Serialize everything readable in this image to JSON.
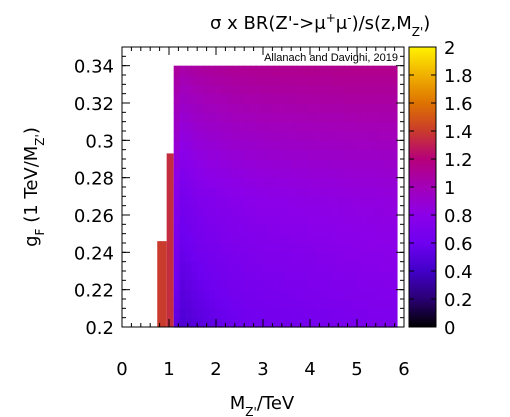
{
  "chart_data": {
    "type": "heatmap",
    "title": "σ x BR(Z'->μ⁺μ⁻)/s(z,M_Z')",
    "title_parts": {
      "pre": "σ x BR(Z'->μ",
      "sup1": "+",
      "mid": "μ",
      "sup2": "-",
      "post": ")/s(z,M",
      "sub": "Z'",
      "end": ")"
    },
    "annotation": "Allanach and Davighi, 2019",
    "xlabel": "M_Z'/TeV",
    "xlabel_parts": {
      "pre": "M",
      "sub": "Z'",
      "post": "/TeV"
    },
    "ylabel": "g_F (1 TeV/M_Z')",
    "ylabel_parts": {
      "pre": "g",
      "sub1": "F",
      "mid": " (1 TeV/M",
      "sub2": "Z'",
      "post": ")"
    },
    "xlim": [
      0,
      6
    ],
    "ylim": [
      0.2,
      0.35
    ],
    "zlim": [
      0,
      2
    ],
    "x_ticks": [
      "0",
      "1",
      "2",
      "3",
      "4",
      "5",
      "6"
    ],
    "y_ticks": [
      "0.2",
      "0.22",
      "0.24",
      "0.26",
      "0.28",
      "0.3",
      "0.32",
      "0.34"
    ],
    "z_ticks": [
      "0",
      "0.2",
      "0.4",
      "0.6",
      "0.8",
      "1",
      "1.2",
      "1.4",
      "1.6",
      "1.8",
      "2"
    ],
    "grid": false,
    "colorbar_position": "right",
    "excluded_region": [
      {
        "x": [
          0.75,
          0.95
        ],
        "y": [
          0.2,
          0.246
        ],
        "value": 1.4
      },
      {
        "x": [
          0.95,
          1.1
        ],
        "y": [
          0.2,
          0.293
        ],
        "value": 1.35
      }
    ],
    "main_region": {
      "x": [
        1.1,
        5.85
      ],
      "y": [
        0.2,
        0.34
      ]
    },
    "value_profile": {
      "x": [
        1.1,
        1.3,
        1.6,
        2.0,
        2.5,
        3.0,
        4.0,
        5.0,
        5.85
      ],
      "at_y_0.20": [
        0.55,
        0.45,
        0.5,
        0.55,
        0.6,
        0.62,
        0.65,
        0.68,
        0.7
      ],
      "at_y_0.27": [
        0.8,
        0.65,
        0.72,
        0.75,
        0.78,
        0.8,
        0.82,
        0.84,
        0.85
      ],
      "at_y_0.34": [
        1.1,
        1.05,
        1.08,
        1.1,
        1.12,
        1.13,
        1.14,
        1.15,
        1.15
      ]
    }
  }
}
